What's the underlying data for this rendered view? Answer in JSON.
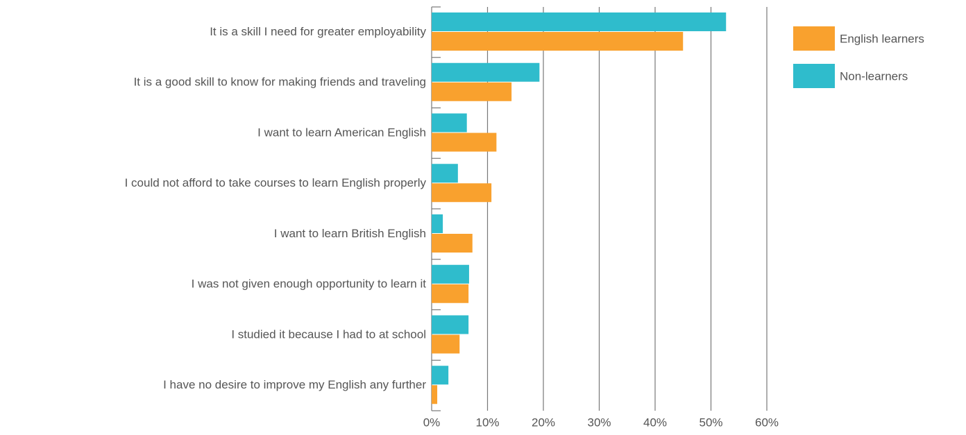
{
  "chart_data": {
    "type": "barh",
    "categories": [
      "It is a skill I need for greater employability",
      "It is a good skill to know for making friends and traveling",
      "I want to learn American English",
      "I could not afford to take courses to learn English properly",
      "I want to learn British English",
      "I was not given enough opportunity to learn it",
      "I studied it because I had to at school",
      "I have no desire to improve my English any further"
    ],
    "series": [
      {
        "name": "English learners",
        "color": "#f9a12e",
        "values": [
          45.0,
          14.3,
          11.6,
          10.7,
          7.3,
          6.6,
          5.0,
          1.0
        ]
      },
      {
        "name": "Non-learners",
        "color": "#2fbccc",
        "values": [
          52.7,
          19.3,
          6.3,
          4.7,
          2.0,
          6.7,
          6.6,
          3.0
        ]
      }
    ],
    "xlim": [
      0,
      60
    ],
    "xticks": [
      {
        "value": 0,
        "label": "0%"
      },
      {
        "value": 10,
        "label": "10%"
      },
      {
        "value": 20,
        "label": "20%"
      },
      {
        "value": 30,
        "label": "30%"
      },
      {
        "value": 40,
        "label": "40%"
      },
      {
        "value": 50,
        "label": "50%"
      },
      {
        "value": 60,
        "label": "60%"
      }
    ],
    "grid": true,
    "legend": "right"
  }
}
